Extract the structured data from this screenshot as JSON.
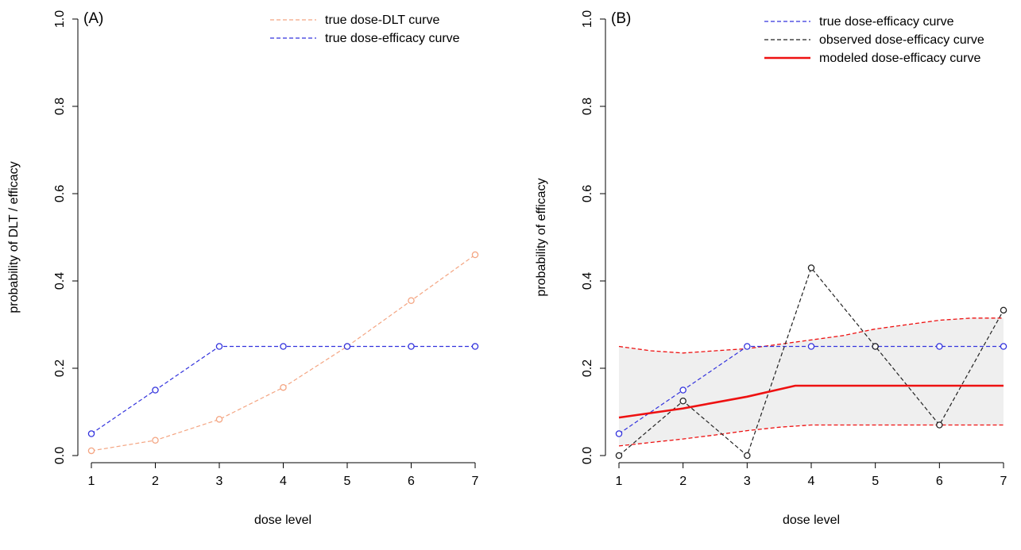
{
  "chart_data": [
    {
      "type": "line",
      "panel_label": "(A)",
      "xlabel": "dose level",
      "ylabel": "probability of DLT / efficacy",
      "xlim": [
        1,
        7
      ],
      "ylim": [
        0,
        1
      ],
      "x_ticks": [
        "1",
        "2",
        "3",
        "4",
        "5",
        "6",
        "7"
      ],
      "y_ticks": [
        "0.0",
        "0.2",
        "0.4",
        "0.6",
        "0.8",
        "1.0"
      ],
      "legend_position": "top-right",
      "series": [
        {
          "name": "true dose-DLT curve",
          "color": "#f4a582",
          "style": "dashed",
          "markers": true,
          "x": [
            1,
            2,
            3,
            4,
            5,
            6,
            7
          ],
          "values": [
            0.011,
            0.035,
            0.083,
            0.156,
            0.25,
            0.355,
            0.46
          ]
        },
        {
          "name": "true dose-efficacy curve",
          "color": "#3333dd",
          "style": "dashed",
          "markers": true,
          "x": [
            1,
            2,
            3,
            4,
            5,
            6,
            7
          ],
          "values": [
            0.05,
            0.15,
            0.25,
            0.25,
            0.25,
            0.25,
            0.25
          ]
        }
      ]
    },
    {
      "type": "line",
      "panel_label": "(B)",
      "xlabel": "dose level",
      "ylabel": "probability of efficacy",
      "xlim": [
        1,
        7
      ],
      "ylim": [
        0,
        1
      ],
      "x_ticks": [
        "1",
        "2",
        "3",
        "4",
        "5",
        "6",
        "7"
      ],
      "y_ticks": [
        "0.0",
        "0.2",
        "0.4",
        "0.6",
        "0.8",
        "1.0"
      ],
      "legend_position": "top-right",
      "series": [
        {
          "name": "true dose-efficacy curve",
          "color": "#3333dd",
          "style": "dashed",
          "markers": true,
          "x": [
            1,
            2,
            3,
            4,
            5,
            6,
            7
          ],
          "values": [
            0.05,
            0.15,
            0.25,
            0.25,
            0.25,
            0.25,
            0.25
          ]
        },
        {
          "name": "observed dose-efficacy curve",
          "color": "#222222",
          "style": "dashed",
          "markers": true,
          "x": [
            1,
            2,
            3,
            4,
            5,
            6,
            7
          ],
          "values": [
            0.0,
            0.125,
            0.0,
            0.43,
            0.25,
            0.07,
            0.333
          ]
        },
        {
          "name": "modeled dose-efficacy curve",
          "color": "#ee1111",
          "style": "solid",
          "markers": false,
          "x": [
            1,
            2,
            3,
            3.75,
            4,
            5,
            6,
            7
          ],
          "values": [
            0.087,
            0.108,
            0.135,
            0.16,
            0.16,
            0.16,
            0.16,
            0.16
          ]
        }
      ],
      "band": {
        "color": "#ee1111",
        "fill": "#efefef",
        "x": [
          1,
          1.5,
          2,
          2.5,
          3,
          3.5,
          4,
          4.5,
          5,
          5.5,
          6,
          6.5,
          7
        ],
        "upper": [
          0.25,
          0.24,
          0.235,
          0.24,
          0.245,
          0.255,
          0.265,
          0.275,
          0.29,
          0.3,
          0.31,
          0.315,
          0.315
        ],
        "lower": [
          0.022,
          0.03,
          0.038,
          0.047,
          0.057,
          0.065,
          0.07,
          0.07,
          0.07,
          0.07,
          0.07,
          0.07,
          0.07
        ]
      }
    }
  ]
}
